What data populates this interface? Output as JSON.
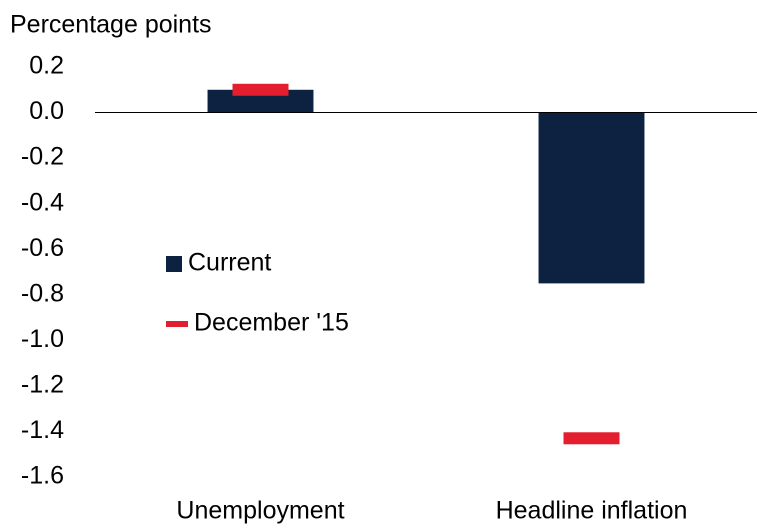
{
  "chart_data": {
    "type": "bar",
    "y_label": "Percentage points",
    "categories": [
      "Unemployment",
      "Headline inflation"
    ],
    "series": [
      {
        "name": "Current",
        "color": "#0d2240",
        "style": "bar",
        "values": [
          0.1,
          -0.75
        ]
      },
      {
        "name": "December '15",
        "color": "#e31e2f",
        "style": "dash",
        "values": [
          0.1,
          -1.43
        ]
      }
    ],
    "ylim": [
      -1.6,
      0.2
    ],
    "yticks": [
      0.2,
      {
        "value": 0,
        "label": "0.0"
      },
      -0.2,
      -0.4,
      -0.6,
      -0.8,
      {
        "value": -1,
        "label": "-1.0"
      },
      -1.2,
      -1.4,
      -1.6
    ],
    "grid": false,
    "legend": "left"
  }
}
